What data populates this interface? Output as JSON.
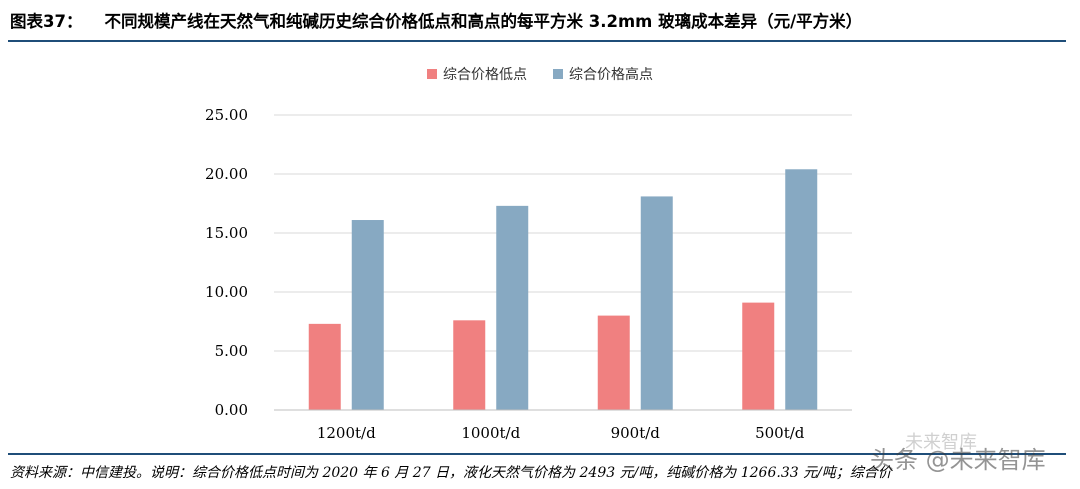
{
  "header": {
    "label": "图表37：",
    "title": "不同规模产线在天然气和纯碱历史综合价格低点和高点的每平方米 3.2mm 玻璃成本差异（元/平方米）"
  },
  "chart_data": {
    "type": "bar",
    "categories": [
      "1200t/d",
      "1000t/d",
      "900t/d",
      "500t/d"
    ],
    "series": [
      {
        "name": "综合价格低点",
        "color": "#f08080",
        "values": [
          7.3,
          7.6,
          8.0,
          9.1
        ]
      },
      {
        "name": "综合价格高点",
        "color": "#87a9c2",
        "values": [
          16.1,
          17.3,
          18.1,
          20.4
        ]
      }
    ],
    "ylim": [
      0,
      25
    ],
    "yticks": [
      "0.00",
      "5.00",
      "10.00",
      "15.00",
      "20.00",
      "25.00"
    ],
    "grid": true,
    "legend": "top-center"
  },
  "footer": {
    "source": "资料来源：中信建投。说明：综合价格低点时间为 2020 年 6 月 27 日，液化天然气价格为 2493 元/吨，纯碱价格为 1266.33 元/吨；综合价"
  },
  "watermark": {
    "main": "头条 @未来智库",
    "small": "未来智库"
  }
}
